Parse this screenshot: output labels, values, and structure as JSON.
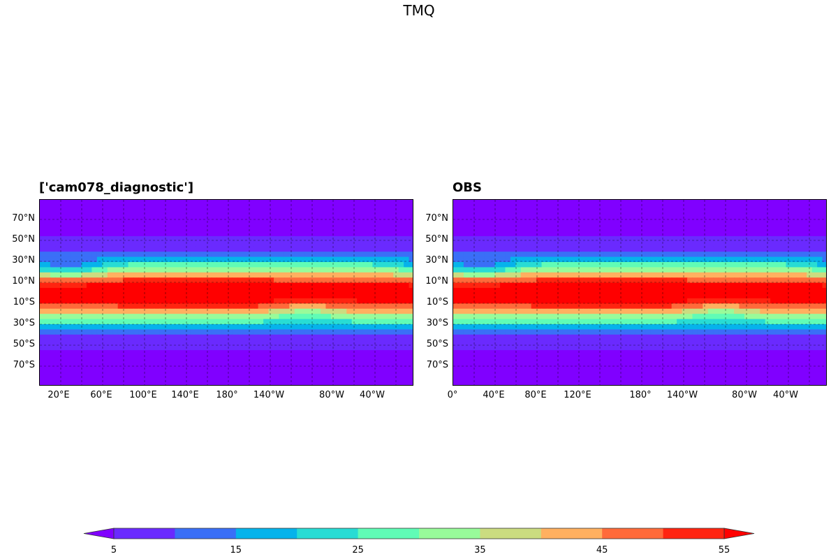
{
  "figure": {
    "title": "TMQ"
  },
  "panels": [
    {
      "title": "['cam078_diagnostic']",
      "lat_ticks": [
        "70°N",
        "50°N",
        "30°N",
        "10°N",
        "10°S",
        "30°S",
        "50°S",
        "70°S"
      ],
      "lon_ticks": [
        "20°E",
        "60°E",
        "100°E",
        "140°E",
        "180°",
        "140°W",
        "80°W",
        "40°W"
      ]
    },
    {
      "title": "OBS",
      "lat_ticks": [
        "70°N",
        "50°N",
        "30°N",
        "10°N",
        "10°S",
        "30°S",
        "50°S",
        "70°S"
      ],
      "lon_ticks": [
        "0°",
        "40°E",
        "80°E",
        "120°E",
        "180°",
        "140°W",
        "80°W",
        "40°W"
      ]
    }
  ],
  "colorbar": {
    "levels": [
      5,
      10,
      15,
      20,
      25,
      30,
      35,
      40,
      45,
      50,
      55
    ],
    "tick_labels": [
      "5",
      "15",
      "25",
      "35",
      "45",
      "55"
    ],
    "extend": "both",
    "colormap": "rainbow",
    "colors": [
      "#8000ff",
      "#6a2afe",
      "#3a6ff7",
      "#06b3eb",
      "#28dcd4",
      "#60fcb6",
      "#98fb9a",
      "#cbdc80",
      "#ffb060",
      "#ff6a3a",
      "#ff2410",
      "#ff0000"
    ]
  },
  "chart_data": {
    "type": "heatmap",
    "title": "TMQ",
    "variable": "TMQ",
    "panels": [
      "['cam078_diagnostic']",
      "OBS"
    ],
    "lat_ticks": [
      "70°N",
      "50°N",
      "30°N",
      "10°N",
      "10°S",
      "30°S",
      "50°S",
      "70°S"
    ],
    "colorbar_range": [
      5,
      55
    ],
    "colorbar_step": 5,
    "grid": true
  }
}
